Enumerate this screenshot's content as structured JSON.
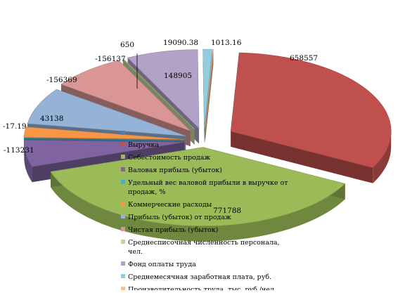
{
  "chart_data": {
    "type": "pie",
    "style": "3d-exploded",
    "title": "",
    "legend_position": "overlaid-center",
    "series": [
      {
        "name": "Выручка",
        "color": "#c0504d",
        "label": "658557",
        "value": 658557
      },
      {
        "name": "Себестоимость продаж",
        "color": "#9bbb59",
        "label": "771788",
        "value": 771788
      },
      {
        "name": "Валовая прибыль (убыток)",
        "color": "#8064a2",
        "label": "-113231",
        "value": -113231
      },
      {
        "name": "Удельный вес валовой прибыли в выручке от продаж, %",
        "color": "#4bacc6",
        "label": "-17.19",
        "value": -17.19
      },
      {
        "name": "Коммерческие расходы",
        "color": "#f79646",
        "label": "43138",
        "value": 43138
      },
      {
        "name": "Прибыль (убыток) от продаж",
        "color": "#95b3d7",
        "label": "-156369",
        "value": -156369
      },
      {
        "name": "Чистая прибыль (убыток)",
        "color": "#d99694",
        "label": "-156137",
        "value": -156137
      },
      {
        "name": "Среднесписочная численность персонала, чел.",
        "color": "#c3d69b",
        "label": "650",
        "value": 650
      },
      {
        "name": "Фонд оплаты труда",
        "color": "#b2a2c7",
        "label": "148905",
        "value": 148905
      },
      {
        "name": "Среднемесячная заработная плата, руб.",
        "color": "#93cddd",
        "label": "19090.38",
        "value": 19090.38
      },
      {
        "name": "Производительность труда, тыс. руб./чел.",
        "color": "#fac090",
        "label": "1013.16",
        "value": 1013.16
      }
    ]
  }
}
